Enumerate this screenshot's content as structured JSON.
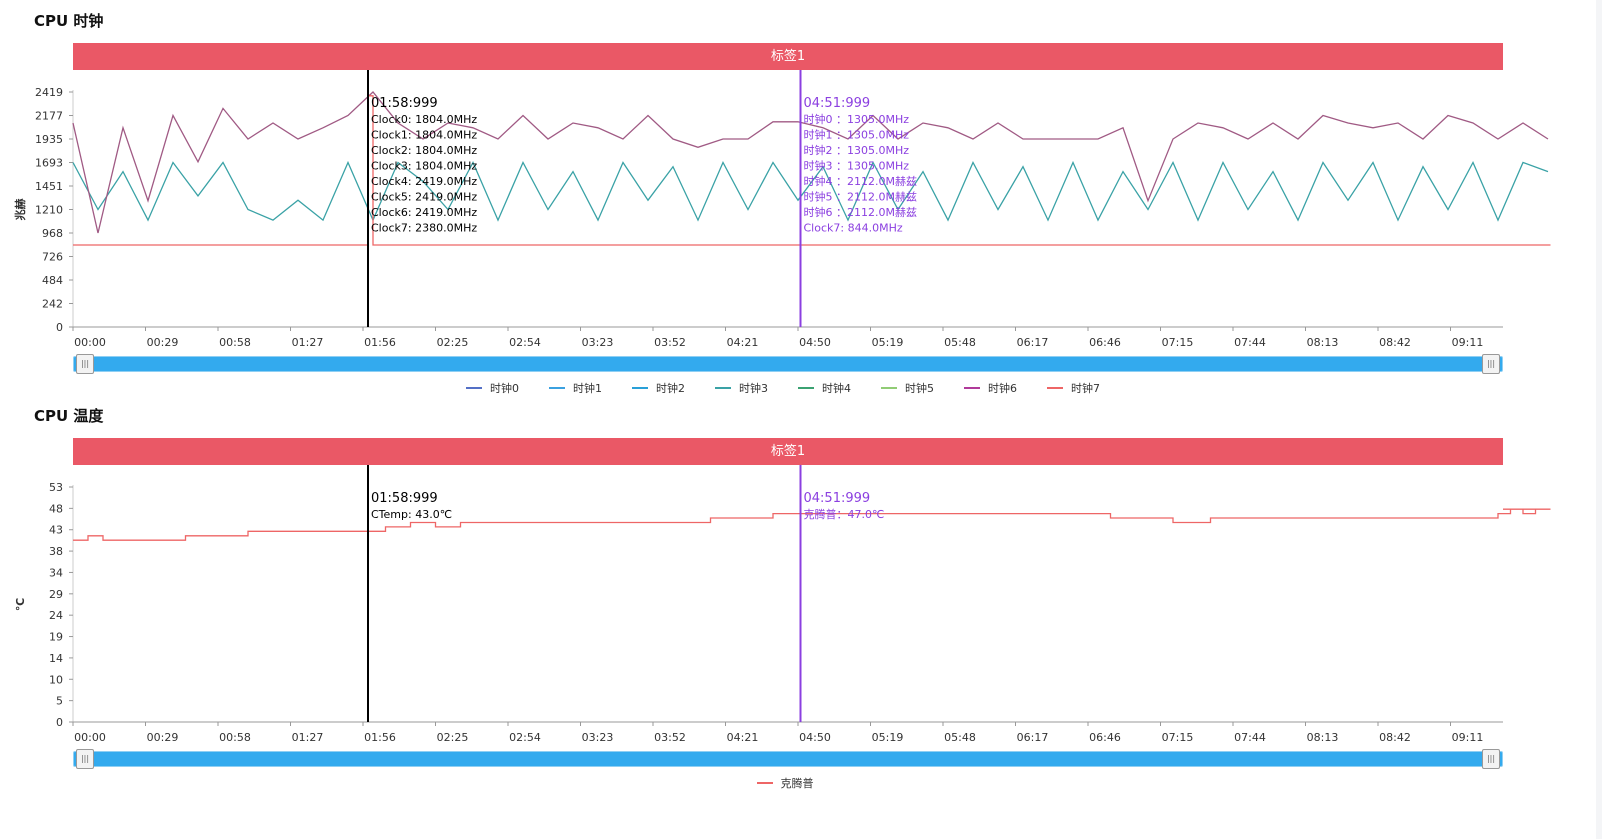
{
  "charts": [
    {
      "title": "CPU 时钟",
      "tag": "标签1",
      "ylabel": "兆赫",
      "y_ticks": [
        "2419",
        "2177",
        "1935",
        "1693",
        "1451",
        "1210",
        "968",
        "726",
        "484",
        "242",
        "0"
      ],
      "x_ticks": [
        "00:00",
        "00:29",
        "00:58",
        "01:27",
        "01:56",
        "02:25",
        "02:54",
        "03:23",
        "03:52",
        "04:21",
        "04:50",
        "05:19",
        "05:48",
        "06:17",
        "06:46",
        "07:15",
        "07:44",
        "08:13",
        "08:42",
        "09:11"
      ],
      "legend": [
        "时钟0",
        "时钟1",
        "时钟2",
        "时钟3",
        "时钟4",
        "时钟5",
        "时钟6",
        "时钟7"
      ],
      "marker_black": {
        "time": "01:58:999",
        "lines": [
          "Clock0: 1804.0MHz",
          "Clock1: 1804.0MHz",
          "Clock2: 1804.0MHz",
          "Clock3: 1804.0MHz",
          "Clock4: 2419.0MHz",
          "Clock5: 2419.0MHz",
          "Clock6: 2419.0MHz",
          "Clock7: 2380.0MHz"
        ]
      },
      "marker_purple": {
        "time": "04:51:999",
        "lines": [
          "时钟0 ：1305.0MHz",
          "时钟1 ：1305.0MHz",
          "时钟2 ：1305.0MHz",
          "时钟3 ：1305.0MHz",
          "时钟4 ：2112.0M赫兹",
          "时钟5 ：2112.0M赫兹",
          "时钟6 ：2112.0M赫兹",
          "Clock7: 844.0MHz"
        ]
      }
    },
    {
      "title": "CPU 温度",
      "tag": "标签1",
      "ylabel": "℃",
      "y_ticks": [
        "53",
        "48",
        "43",
        "38",
        "34",
        "29",
        "24",
        "19",
        "14",
        "10",
        "5",
        "0"
      ],
      "x_ticks": [
        "00:00",
        "00:29",
        "00:58",
        "01:27",
        "01:56",
        "02:25",
        "02:54",
        "03:23",
        "03:52",
        "04:21",
        "04:50",
        "05:19",
        "05:48",
        "06:17",
        "06:46",
        "07:15",
        "07:44",
        "08:13",
        "08:42",
        "09:11"
      ],
      "legend": [
        "克腾普"
      ],
      "marker_black": {
        "time": "01:58:999",
        "lines": [
          "CTemp: 43.0℃"
        ]
      },
      "marker_purple": {
        "time": "04:51:999",
        "lines": [
          "克腾普：47.0℃"
        ]
      }
    }
  ],
  "colors": {
    "tag": "#ea5866",
    "legend": [
      "#5470c6",
      "#3ba1e0",
      "#29a0d8",
      "#3aa2a6",
      "#3ba272",
      "#91cc75",
      "#b03a9a",
      "#ee6666"
    ],
    "temp_legend": "#ee6666",
    "marker_purple": "#8b3fe0",
    "slider": "#33aaee"
  },
  "chart_data": [
    {
      "type": "line",
      "title": "CPU 时钟",
      "xlabel": "",
      "ylabel": "兆赫",
      "x_unit": "mm:ss",
      "xlim": [
        "00:00",
        "09:51"
      ],
      "ylim": [
        0,
        2419
      ],
      "series": [
        {
          "name": "时钟0",
          "values": []
        },
        {
          "name": "时钟1",
          "values": []
        },
        {
          "name": "时钟2",
          "values": []
        },
        {
          "name": "时钟3",
          "x": [
            "00:00",
            "00:10",
            "00:20",
            "00:30",
            "00:40",
            "00:50",
            "01:00",
            "01:10",
            "01:20",
            "01:30",
            "01:40",
            "01:50",
            "02:00",
            "02:10",
            "02:20",
            "02:30",
            "02:40",
            "02:50",
            "03:00",
            "03:10",
            "03:20",
            "03:30",
            "03:40",
            "03:50",
            "04:00",
            "04:10",
            "04:20",
            "04:30",
            "04:40",
            "04:50",
            "05:00",
            "05:10",
            "05:20",
            "05:30",
            "05:40",
            "05:50",
            "06:00",
            "06:10",
            "06:20",
            "06:30",
            "06:40",
            "06:50",
            "07:00",
            "07:10",
            "07:20",
            "07:30",
            "07:40",
            "07:50",
            "08:00",
            "08:10",
            "08:20",
            "08:30",
            "08:40",
            "08:50",
            "09:00",
            "09:10",
            "09:20",
            "09:30",
            "09:40",
            "09:50"
          ],
          "values": [
            1693,
            1210,
            1600,
            1100,
            1693,
            1350,
            1693,
            1210,
            1100,
            1305,
            1100,
            1693,
            1100,
            1693,
            1500,
            1210,
            1693,
            1100,
            1693,
            1210,
            1600,
            1100,
            1693,
            1305,
            1650,
            1100,
            1693,
            1210,
            1693,
            1305,
            1650,
            1100,
            1693,
            1210,
            1600,
            1100,
            1693,
            1210,
            1650,
            1100,
            1693,
            1100,
            1600,
            1210,
            1693,
            1100,
            1693,
            1210,
            1600,
            1100,
            1693,
            1305,
            1693,
            1100,
            1650,
            1210,
            1693,
            1100,
            1693,
            1600
          ]
        },
        {
          "name": "时钟4",
          "values": []
        },
        {
          "name": "时钟5",
          "values": []
        },
        {
          "name": "时钟6",
          "x": [
            "00:00",
            "00:10",
            "00:20",
            "00:30",
            "00:40",
            "00:50",
            "01:00",
            "01:10",
            "01:20",
            "01:30",
            "01:40",
            "01:50",
            "02:00",
            "02:10",
            "02:20",
            "02:30",
            "02:40",
            "02:50",
            "03:00",
            "03:10",
            "03:20",
            "03:30",
            "03:40",
            "03:50",
            "04:00",
            "04:10",
            "04:20",
            "04:30",
            "04:40",
            "04:50",
            "05:00",
            "05:10",
            "05:20",
            "05:30",
            "05:40",
            "05:50",
            "06:00",
            "06:10",
            "06:20",
            "06:30",
            "06:40",
            "06:50",
            "07:00",
            "07:10",
            "07:20",
            "07:30",
            "07:40",
            "07:50",
            "08:00",
            "08:10",
            "08:20",
            "08:30",
            "08:40",
            "08:50",
            "09:00",
            "09:10",
            "09:20",
            "09:30",
            "09:40",
            "09:50"
          ],
          "values": [
            2100,
            968,
            2050,
            1300,
            2177,
            1700,
            2250,
            1935,
            2100,
            1935,
            2050,
            2177,
            2419,
            2100,
            1935,
            2100,
            2050,
            1935,
            2177,
            1935,
            2100,
            2050,
            1935,
            2177,
            1935,
            1850,
            1935,
            1935,
            2112,
            2112,
            2050,
            1935,
            2177,
            1935,
            2100,
            2050,
            1935,
            2100,
            1935,
            1935,
            1935,
            1935,
            2050,
            1300,
            1935,
            2100,
            2050,
            1935,
            2100,
            1935,
            2177,
            2100,
            2050,
            2100,
            1935,
            2177,
            2100,
            1935,
            2100,
            1935
          ]
        },
        {
          "name": "时钟7",
          "x": [
            "00:00",
            "01:56",
            "01:58",
            "02:00",
            "09:51"
          ],
          "values": [
            844,
            844,
            2380,
            844,
            844
          ]
        }
      ]
    },
    {
      "type": "line",
      "title": "CPU 温度",
      "xlabel": "",
      "ylabel": "℃",
      "x_unit": "mm:ss",
      "xlim": [
        "00:00",
        "09:51"
      ],
      "ylim": [
        0,
        53
      ],
      "series": [
        {
          "name": "克腾普",
          "x": [
            "00:00",
            "00:06",
            "00:12",
            "00:45",
            "01:10",
            "01:58",
            "02:05",
            "02:15",
            "02:25",
            "02:35",
            "03:50",
            "04:15",
            "04:40",
            "05:20",
            "06:30",
            "06:55",
            "07:20",
            "07:35",
            "08:30",
            "09:30",
            "09:35",
            "09:40",
            "09:45",
            "09:51"
          ],
          "values": [
            41,
            42,
            41,
            42,
            43,
            43,
            44,
            45,
            44,
            45,
            45,
            46,
            47,
            47,
            47,
            46,
            45,
            46,
            46,
            47,
            48,
            47,
            48,
            48
          ]
        }
      ]
    }
  ]
}
